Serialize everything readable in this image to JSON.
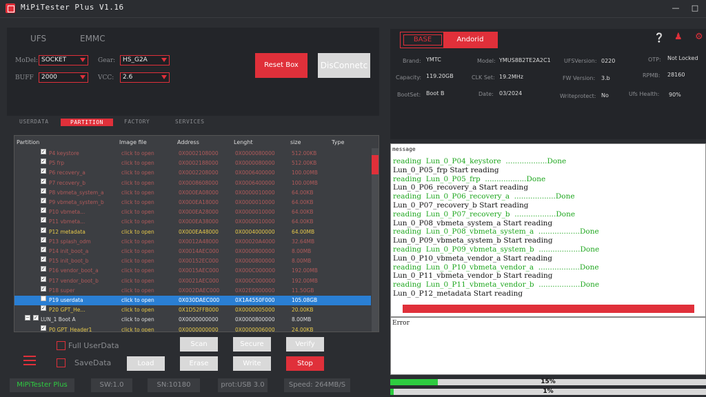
{
  "window": {
    "title": "MiPiTester Plus V1.16"
  },
  "top_tabs": [
    "UFS",
    "EMMC"
  ],
  "config": {
    "model_label": "MoDel:",
    "model_value": "SOCKET",
    "gear_label": "Gear:",
    "gear_value": "HS_G2A",
    "buff_label": "BUFF",
    "buff_value": "2000",
    "vcc_label": "VCC:",
    "vcc_value": "2.6",
    "reset_button": "Reset Box",
    "disconnect_button": "DisConnetc"
  },
  "sub_tabs": [
    "USERDATA",
    "PARTITION",
    "FACTORY",
    "SERVICES"
  ],
  "table": {
    "headers": [
      "Partition",
      "Image file",
      "Address",
      "Lenght",
      "size",
      "Type"
    ],
    "rows": [
      {
        "name": "P4 keystore",
        "image": "click to open",
        "address": "0X0002108000",
        "length": "0X0000080000",
        "size": "512.00KB",
        "style": "red"
      },
      {
        "name": "P5 frp",
        "image": "click to open",
        "address": "0X0002188000",
        "length": "0X0000080000",
        "size": "512.00KB",
        "style": "red"
      },
      {
        "name": "P6 recovery_a",
        "image": "click to open",
        "address": "0X0002208000",
        "length": "0X0006400000",
        "size": "100.00MB",
        "style": "red"
      },
      {
        "name": "P7 recovery_b",
        "image": "click to open",
        "address": "0X0008608000",
        "length": "0X0006400000",
        "size": "100.00MB",
        "style": "red"
      },
      {
        "name": "P8 vbmeta_system_a",
        "image": "click to open",
        "address": "0X000EA08000",
        "length": "0X0000010000",
        "size": "64.00KB",
        "style": "red"
      },
      {
        "name": "P9 vbmeta_system_b",
        "image": "click to open",
        "address": "0X000EA18000",
        "length": "0X0000010000",
        "size": "64.00KB",
        "style": "red"
      },
      {
        "name": "P10 vbmeta...",
        "image": "click to open",
        "address": "0X000EA28000",
        "length": "0X0000010000",
        "size": "64.00KB",
        "style": "red"
      },
      {
        "name": "P11 vbmeta...",
        "image": "click to open",
        "address": "0X000EA38000",
        "length": "0X0000010000",
        "size": "64.00KB",
        "style": "red"
      },
      {
        "name": "P12 metadata",
        "image": "click to open",
        "address": "0X000EA48000",
        "length": "0X0004000000",
        "size": "64.00MB",
        "style": "yel"
      },
      {
        "name": "P13 splash_odm",
        "image": "click to open",
        "address": "0X0012A48000",
        "length": "0X00020A4000",
        "size": "32.64MB",
        "style": "red"
      },
      {
        "name": "P14 init_boot_a",
        "image": "click to open",
        "address": "0X0014AEC000",
        "length": "0X0000800000",
        "size": "8.00MB",
        "style": "red"
      },
      {
        "name": "P15 init_boot_b",
        "image": "click to open",
        "address": "0X00152EC000",
        "length": "0X0000800000",
        "size": "8.00MB",
        "style": "red"
      },
      {
        "name": "P16 vendor_boot_a",
        "image": "click to open",
        "address": "0X0015AEC000",
        "length": "0X000C000000",
        "size": "192.00MB",
        "style": "red"
      },
      {
        "name": "P17 vendor_boot_b",
        "image": "click to open",
        "address": "0X0021AEC000",
        "length": "0X000C000000",
        "size": "192.00MB",
        "style": "red"
      },
      {
        "name": "P18 super",
        "image": "click to open",
        "address": "0X002DAEC000",
        "length": "0X02E0000000",
        "size": "11.50GB",
        "style": "red"
      },
      {
        "name": "P19 userdata",
        "image": "click to open",
        "address": "0X030DAEC000",
        "length": "0X1A4550F000",
        "size": "105.08GB",
        "style": "hi"
      },
      {
        "name": "P20 GPT_He...",
        "image": "click to open",
        "address": "0X1D52FFB000",
        "length": "0X0000005000",
        "size": "20.00KB",
        "style": "yel"
      },
      {
        "name": "LUN_1 Boot A",
        "image": "click to open",
        "address": "0X0000000000",
        "length": "0X0000800000",
        "size": "8.00MB",
        "style": "lun"
      },
      {
        "name": "P0 GPT_Header1",
        "image": "click to open",
        "address": "0X0000000000",
        "length": "0X0000006000",
        "size": "24.00KB",
        "style": "yel"
      }
    ]
  },
  "controls": {
    "full_userdata": "Full UserData",
    "save_data": "SaveData",
    "scan": "Scan",
    "secure": "Secure",
    "verify": "Verify",
    "load": "Load",
    "erase": "Erase",
    "write": "Write",
    "stop": "Stop"
  },
  "status": {
    "app": "MiPiTester Plus",
    "sw": "SW:1.0",
    "sn": "SN:10180",
    "prot": "prot:USB 3.0",
    "speed": "Speed: 264MB/S"
  },
  "device": {
    "toggle_left": "BASE",
    "toggle_right": "Andorid",
    "brand_label": "Brand:",
    "brand": "YMTC",
    "model_label": "Model:",
    "model": "YMUS8B2TE2A2C1",
    "ufsver_label": "UFSVersion:",
    "ufsver": "0220",
    "otp_label": "OTP:",
    "otp": "Not Locked",
    "capacity_label": "Capacity:",
    "capacity": "119.20GB",
    "clk_label": "CLK Set:",
    "clk": "19.2MHz",
    "fw_label": "FW Version:",
    "fw": "3.b",
    "rpmb_label": "RPMB:",
    "rpmb": "28160",
    "bootset_label": "BootSet:",
    "bootset": "Boot B",
    "date_label": "Date:",
    "date": "03/2024",
    "wp_label": "Writeprotect:",
    "wp": "No",
    "health_label": "Ufs Health:",
    "health": "90%"
  },
  "message": {
    "header": "message",
    "lines": [
      {
        "text": "reading  Lun_0_P04_keystore  ..................Done",
        "c": "g"
      },
      {
        "text": "Lun_0_P05_frp Start reading",
        "c": "b"
      },
      {
        "text": "reading  Lun_0_P05_frp  ..................Done",
        "c": "g"
      },
      {
        "text": "Lun_0_P06_recovery_a Start reading",
        "c": "b"
      },
      {
        "text": "reading  Lun_0_P06_recovery_a  ..................Done",
        "c": "g"
      },
      {
        "text": "Lun_0_P07_recovery_b Start reading",
        "c": "b"
      },
      {
        "text": "reading  Lun_0_P07_recovery_b  ..................Done",
        "c": "g"
      },
      {
        "text": "Lun_0_P08_vbmeta_system_a Start reading",
        "c": "b"
      },
      {
        "text": "reading  Lun_0_P08_vbmeta_system_a  ..................Done",
        "c": "g"
      },
      {
        "text": "Lun_0_P09_vbmeta_system_b Start reading",
        "c": "b"
      },
      {
        "text": "reading  Lun_0_P09_vbmeta_system_b  ..................Done",
        "c": "g"
      },
      {
        "text": "Lun_0_P10_vbmeta_vendor_a Start reading",
        "c": "b"
      },
      {
        "text": "reading  Lun_0_P10_vbmeta_vendor_a  ..................Done",
        "c": "g"
      },
      {
        "text": "Lun_0_P11_vbmeta_vendor_b Start reading",
        "c": "b"
      },
      {
        "text": "reading  Lun_0_P11_vbmeta_vendor_b  ..................Done",
        "c": "g"
      },
      {
        "text": "Lun_0_P12_metadata Start reading",
        "c": "b"
      }
    ]
  },
  "error": {
    "header": "Error"
  },
  "progress": [
    {
      "label": "15%",
      "value": 0.15
    },
    {
      "label": "1%",
      "value": 0.01
    }
  ],
  "colors": {
    "accent": "#e0303a",
    "progress": "#2ecc40"
  }
}
